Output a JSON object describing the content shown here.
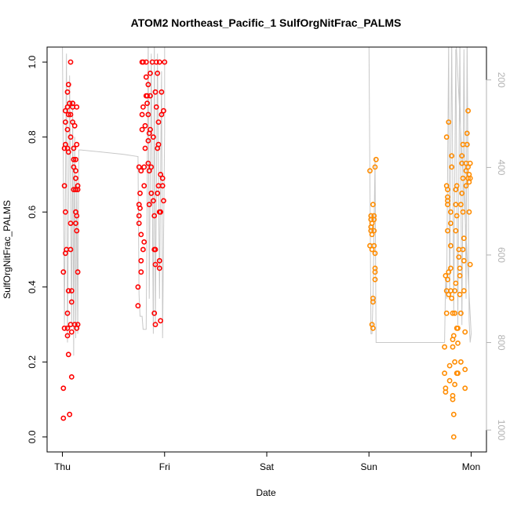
{
  "chart_data": {
    "type": "scatter",
    "title": "ATOM2 Northeast_Pacific_1 SulfOrgNitFrac_PALMS",
    "xlabel": "Date",
    "ylabel": "SulfOrgNitFrac_PALMS",
    "x_ticks": [
      "Thu",
      "Fri",
      "Sat",
      "Sun",
      "Mon"
    ],
    "xlim": [
      -0.15,
      4.15
    ],
    "ylim": [
      -0.04,
      1.04
    ],
    "y_ticks": [
      0.0,
      0.2,
      0.4,
      0.6,
      0.8,
      1.0
    ],
    "y_tick_labels": [
      "0.0",
      "0.2",
      "0.4",
      "0.6",
      "0.8",
      "1.0"
    ],
    "right_axis": {
      "ylim": [
        1050,
        125
      ],
      "ticks": [
        200,
        400,
        600,
        800,
        1000
      ],
      "tick_labels": [
        "200",
        "400",
        "600",
        "800",
        "1000"
      ],
      "color": "#b3b3b3"
    },
    "grid": false,
    "legend": "none",
    "series": [
      {
        "color": "#ff0000",
        "marker": "circle-open",
        "points": [
          [
            0.01,
            0.05
          ],
          [
            0.01,
            0.13
          ],
          [
            0.02,
            0.29
          ],
          [
            0.01,
            0.44
          ],
          [
            0.02,
            0.67
          ],
          [
            0.02,
            0.77
          ],
          [
            0.03,
            0.78
          ],
          [
            0.03,
            0.84
          ],
          [
            0.03,
            0.87
          ],
          [
            0.03,
            0.6
          ],
          [
            0.03,
            0.49
          ],
          [
            0.04,
            0.5
          ],
          [
            0.05,
            0.88
          ],
          [
            0.05,
            0.92
          ],
          [
            0.06,
            0.94
          ],
          [
            0.06,
            0.86
          ],
          [
            0.05,
            0.82
          ],
          [
            0.05,
            0.77
          ],
          [
            0.06,
            0.76
          ],
          [
            0.06,
            0.39
          ],
          [
            0.05,
            0.33
          ],
          [
            0.05,
            0.29
          ],
          [
            0.05,
            0.27
          ],
          [
            0.06,
            0.22
          ],
          [
            0.07,
            0.06
          ],
          [
            0.07,
            0.89
          ],
          [
            0.08,
            1.0
          ],
          [
            0.08,
            0.86
          ],
          [
            0.08,
            0.8
          ],
          [
            0.08,
            0.57
          ],
          [
            0.08,
            0.5
          ],
          [
            0.08,
            0.3
          ],
          [
            0.09,
            0.28
          ],
          [
            0.09,
            0.39
          ],
          [
            0.09,
            0.16
          ],
          [
            0.09,
            0.36
          ],
          [
            0.1,
            0.89
          ],
          [
            0.1,
            0.84
          ],
          [
            0.1,
            0.88
          ],
          [
            0.11,
            0.77
          ],
          [
            0.11,
            0.74
          ],
          [
            0.11,
            0.72
          ],
          [
            0.11,
            0.66
          ],
          [
            0.12,
            0.3
          ],
          [
            0.12,
            0.83
          ],
          [
            0.13,
            0.66
          ],
          [
            0.13,
            0.6
          ],
          [
            0.13,
            0.69
          ],
          [
            0.13,
            0.71
          ],
          [
            0.13,
            0.74
          ],
          [
            0.13,
            0.57
          ],
          [
            0.14,
            0.55
          ],
          [
            0.14,
            0.29
          ],
          [
            0.14,
            0.59
          ],
          [
            0.15,
            0.66
          ],
          [
            0.15,
            0.67
          ],
          [
            0.15,
            0.44
          ],
          [
            0.15,
            0.3
          ],
          [
            0.14,
            0.88
          ],
          [
            0.14,
            0.78
          ],
          [
            0.74,
            0.35
          ],
          [
            0.74,
            0.4
          ],
          [
            0.75,
            0.57
          ],
          [
            0.75,
            0.62
          ],
          [
            0.75,
            0.72
          ],
          [
            0.75,
            0.59
          ],
          [
            0.76,
            0.61
          ],
          [
            0.76,
            0.65
          ],
          [
            0.77,
            0.47
          ],
          [
            0.77,
            0.44
          ],
          [
            0.77,
            0.54
          ],
          [
            0.77,
            0.71
          ],
          [
            0.78,
            0.82
          ],
          [
            0.78,
            0.86
          ],
          [
            0.79,
            0.88
          ],
          [
            0.78,
            1.0
          ],
          [
            0.79,
            1.0
          ],
          [
            0.79,
            0.5
          ],
          [
            0.8,
            0.52
          ],
          [
            0.8,
            0.72
          ],
          [
            0.8,
            0.67
          ],
          [
            0.81,
            0.77
          ],
          [
            0.81,
            0.83
          ],
          [
            0.82,
            0.96
          ],
          [
            0.82,
            0.91
          ],
          [
            0.82,
            1.0
          ],
          [
            0.83,
            0.89
          ],
          [
            0.83,
            0.91
          ],
          [
            0.84,
            0.94
          ],
          [
            0.84,
            0.86
          ],
          [
            0.84,
            0.79
          ],
          [
            0.84,
            0.73
          ],
          [
            0.85,
            0.62
          ],
          [
            0.85,
            0.71
          ],
          [
            0.85,
            0.81
          ],
          [
            0.86,
            0.82
          ],
          [
            0.86,
            0.91
          ],
          [
            0.86,
            0.97
          ],
          [
            0.87,
            0.72
          ],
          [
            0.87,
            0.65
          ],
          [
            0.88,
            1.0
          ],
          [
            0.89,
            0.8
          ],
          [
            0.89,
            0.63
          ],
          [
            0.9,
            0.59
          ],
          [
            0.9,
            0.5
          ],
          [
            0.9,
            0.33
          ],
          [
            0.91,
            0.3
          ],
          [
            0.91,
            0.46
          ],
          [
            0.91,
            0.5
          ],
          [
            0.91,
            0.92
          ],
          [
            0.92,
            1.0
          ],
          [
            0.92,
            0.88
          ],
          [
            0.93,
            0.97
          ],
          [
            0.93,
            0.77
          ],
          [
            0.93,
            0.65
          ],
          [
            0.94,
            0.67
          ],
          [
            0.94,
            0.78
          ],
          [
            0.94,
            0.84
          ],
          [
            0.95,
            1.0
          ],
          [
            0.95,
            0.6
          ],
          [
            0.95,
            0.45
          ],
          [
            0.95,
            0.47
          ],
          [
            0.96,
            0.31
          ],
          [
            0.96,
            0.7
          ],
          [
            0.96,
            0.6
          ],
          [
            0.97,
            0.86
          ],
          [
            0.97,
            0.92
          ],
          [
            0.98,
            0.69
          ],
          [
            0.98,
            0.67
          ],
          [
            0.99,
            0.63
          ],
          [
            0.99,
            0.87
          ],
          [
            1.0,
            1.0
          ]
        ]
      },
      {
        "color": "#ff8c00",
        "marker": "circle-open",
        "points": [
          [
            3.01,
            0.51
          ],
          [
            3.01,
            0.71
          ],
          [
            3.02,
            0.56
          ],
          [
            3.02,
            0.58
          ],
          [
            3.02,
            0.59
          ],
          [
            3.02,
            0.55
          ],
          [
            3.03,
            0.57
          ],
          [
            3.03,
            0.54
          ],
          [
            3.03,
            0.5
          ],
          [
            3.03,
            0.3
          ],
          [
            3.04,
            0.29
          ],
          [
            3.04,
            0.37
          ],
          [
            3.04,
            0.36
          ],
          [
            3.04,
            0.62
          ],
          [
            3.05,
            0.59
          ],
          [
            3.05,
            0.58
          ],
          [
            3.05,
            0.55
          ],
          [
            3.05,
            0.51
          ],
          [
            3.06,
            0.49
          ],
          [
            3.06,
            0.44
          ],
          [
            3.06,
            0.45
          ],
          [
            3.06,
            0.42
          ],
          [
            3.06,
            0.72
          ],
          [
            3.07,
            0.74
          ],
          [
            3.74,
            0.24
          ],
          [
            3.74,
            0.17
          ],
          [
            3.75,
            0.13
          ],
          [
            3.75,
            0.12
          ],
          [
            3.75,
            0.43
          ],
          [
            3.76,
            0.39
          ],
          [
            3.76,
            0.33
          ],
          [
            3.76,
            0.8
          ],
          [
            3.76,
            0.67
          ],
          [
            3.77,
            0.66
          ],
          [
            3.77,
            0.64
          ],
          [
            3.77,
            0.63
          ],
          [
            3.77,
            0.62
          ],
          [
            3.77,
            0.55
          ],
          [
            3.77,
            0.42
          ],
          [
            3.78,
            0.84
          ],
          [
            3.78,
            0.44
          ],
          [
            3.78,
            0.38
          ],
          [
            3.79,
            0.19
          ],
          [
            3.79,
            0.15
          ],
          [
            3.8,
            0.6
          ],
          [
            3.8,
            0.57
          ],
          [
            3.8,
            0.51
          ],
          [
            3.8,
            0.45
          ],
          [
            3.8,
            0.39
          ],
          [
            3.81,
            0.75
          ],
          [
            3.81,
            0.72
          ],
          [
            3.81,
            0.37
          ],
          [
            3.82,
            0.33
          ],
          [
            3.82,
            0.26
          ],
          [
            3.82,
            0.24
          ],
          [
            3.82,
            0.11
          ],
          [
            3.82,
            0.1
          ],
          [
            3.83,
            0.0
          ],
          [
            3.83,
            0.06
          ],
          [
            3.83,
            0.27
          ],
          [
            3.84,
            0.2
          ],
          [
            3.84,
            0.14
          ],
          [
            3.84,
            0.39
          ],
          [
            3.84,
            0.33
          ],
          [
            3.85,
            0.41
          ],
          [
            3.85,
            0.55
          ],
          [
            3.85,
            0.62
          ],
          [
            3.85,
            0.66
          ],
          [
            3.86,
            0.67
          ],
          [
            3.86,
            0.59
          ],
          [
            3.86,
            0.29
          ],
          [
            3.86,
            0.17
          ],
          [
            3.87,
            0.17
          ],
          [
            3.87,
            0.25
          ],
          [
            3.87,
            0.29
          ],
          [
            3.88,
            0.5
          ],
          [
            3.88,
            0.48
          ],
          [
            3.89,
            0.45
          ],
          [
            3.89,
            0.43
          ],
          [
            3.89,
            0.38
          ],
          [
            3.9,
            0.33
          ],
          [
            3.9,
            0.2
          ],
          [
            3.9,
            0.62
          ],
          [
            3.91,
            0.65
          ],
          [
            3.91,
            0.73
          ],
          [
            3.91,
            0.75
          ],
          [
            3.92,
            0.78
          ],
          [
            3.92,
            0.69
          ],
          [
            3.92,
            0.6
          ],
          [
            3.92,
            0.5
          ],
          [
            3.93,
            0.47
          ],
          [
            3.93,
            0.53
          ],
          [
            3.93,
            0.39
          ],
          [
            3.94,
            0.28
          ],
          [
            3.94,
            0.18
          ],
          [
            3.94,
            0.13
          ],
          [
            3.95,
            0.67
          ],
          [
            3.95,
            0.71
          ],
          [
            3.95,
            0.73
          ],
          [
            3.96,
            0.78
          ],
          [
            3.96,
            0.81
          ],
          [
            3.97,
            0.87
          ],
          [
            3.97,
            0.72
          ],
          [
            3.97,
            0.69
          ],
          [
            3.98,
            0.68
          ],
          [
            3.98,
            0.7
          ],
          [
            3.98,
            0.6
          ],
          [
            3.99,
            0.46
          ],
          [
            3.99,
            0.69
          ],
          [
            3.99,
            0.73
          ]
        ]
      }
    ],
    "altitude_line": {
      "color": "#c8c8c8",
      "points": [
        [
          0.0,
          100
        ],
        [
          0.02,
          760
        ],
        [
          0.04,
          140
        ],
        [
          0.05,
          800
        ],
        [
          0.07,
          190
        ],
        [
          0.09,
          760
        ],
        [
          0.1,
          250
        ],
        [
          0.11,
          830
        ],
        [
          0.12,
          330
        ],
        [
          0.13,
          790
        ],
        [
          0.14,
          420
        ],
        [
          0.15,
          780
        ],
        [
          0.16,
          360
        ],
        [
          0.18,
          360
        ],
        [
          0.6,
          370
        ],
        [
          0.74,
          375
        ],
        [
          0.75,
          690
        ],
        [
          0.76,
          740
        ],
        [
          0.78,
          740
        ],
        [
          0.79,
          770
        ],
        [
          0.82,
          770
        ],
        [
          0.83,
          450
        ],
        [
          0.84,
          110
        ],
        [
          0.85,
          700
        ],
        [
          0.87,
          140
        ],
        [
          0.89,
          780
        ],
        [
          0.9,
          100
        ],
        [
          0.91,
          760
        ],
        [
          0.93,
          140
        ],
        [
          0.95,
          700
        ],
        [
          0.97,
          180
        ],
        [
          0.98,
          790
        ],
        [
          1.0,
          320
        ],
        [
          1.0,
          100
        ],
        [
          1.0,
          100
        ],
        [
          3.0,
          100
        ],
        [
          3.02,
          780
        ],
        [
          3.03,
          780
        ],
        [
          3.04,
          700
        ],
        [
          3.06,
          380
        ],
        [
          3.07,
          800
        ],
        [
          3.1,
          800
        ],
        [
          3.74,
          800
        ],
        [
          3.75,
          660
        ],
        [
          3.76,
          700
        ],
        [
          3.78,
          110
        ],
        [
          3.79,
          690
        ],
        [
          3.81,
          110
        ],
        [
          3.83,
          730
        ],
        [
          3.85,
          130
        ],
        [
          3.87,
          760
        ],
        [
          3.89,
          110
        ],
        [
          3.91,
          760
        ],
        [
          3.93,
          130
        ],
        [
          3.95,
          700
        ],
        [
          3.96,
          100
        ],
        [
          3.98,
          750
        ],
        [
          3.99,
          800
        ],
        [
          4.0,
          780
        ],
        [
          3.85,
          100
        ],
        [
          3.0,
          100
        ]
      ]
    }
  }
}
